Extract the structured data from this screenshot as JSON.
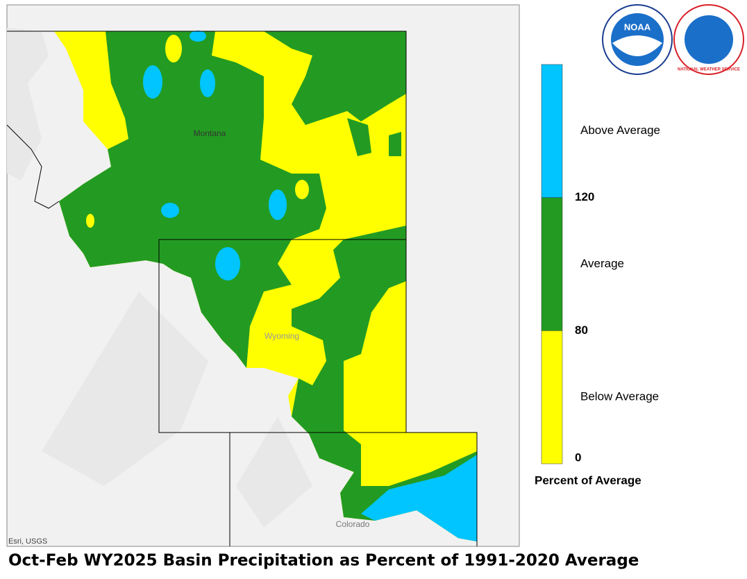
{
  "title": "Oct-Feb WY2025 Basin Precipitation as Percent of 1991-2020 Average",
  "map": {
    "labels": [
      "Montana",
      "Wyoming",
      "Colorado"
    ],
    "credit": "Esri, USGS"
  },
  "logos": {
    "noaa": "NOAA",
    "nws": "NATIONAL WEATHER SERVICE"
  },
  "legend": {
    "title": "Percent of Average",
    "classes": [
      {
        "label": "Below Average",
        "color": "#ffff00"
      },
      {
        "label": "Average",
        "color": "#239b22"
      },
      {
        "label": "Above Average",
        "color": "#00c5ff"
      }
    ],
    "breaks": [
      0,
      80,
      120
    ]
  }
}
